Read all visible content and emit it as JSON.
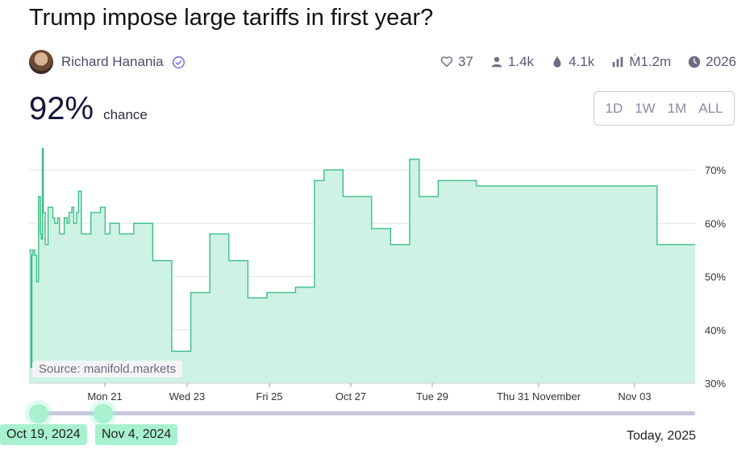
{
  "title": "Trump impose large tariffs in first year?",
  "creator": {
    "name": "Richard Hanania",
    "avatar_icon": "avatar-photo",
    "verified_icon": "verified-badge-icon"
  },
  "stats": {
    "likes": "37",
    "traders": "1.4k",
    "liquidity": "4.1k",
    "volume": "Ṁ1.2m",
    "close": "2026"
  },
  "probability": {
    "value": "92%",
    "label": "chance"
  },
  "range_buttons": [
    "1D",
    "1W",
    "1M",
    "ALL"
  ],
  "source": "Source: manifold.markets",
  "slider": {
    "start_label": "Oct 19, 2024",
    "end_label": "Nov 4, 2024",
    "right_label": "Today, 2025"
  },
  "colors": {
    "line": "#3cbf87",
    "fill": "#cef2e3",
    "accent": "#a7f0d0"
  },
  "chart_data": {
    "type": "area",
    "x_tick_labels": [
      "Mon 21",
      "Wed 23",
      "Fri 25",
      "Oct 27",
      "Tue 29",
      "Thu 31 November",
      "Nov 03"
    ],
    "y_tick_labels": [
      "30%",
      "40%",
      "50%",
      "60%",
      "70%"
    ],
    "ylim": [
      30,
      75
    ],
    "grid": true,
    "series": [
      {
        "x": [
          0,
          0.02,
          0.03,
          0.04,
          0.06,
          0.08,
          0.1,
          0.12,
          0.13,
          0.14,
          0.15,
          0.17,
          0.2,
          0.22,
          0.25,
          0.27,
          0.3,
          0.32,
          0.35,
          0.37,
          0.4,
          0.42,
          0.45,
          0.47,
          0.5,
          0.52,
          0.55,
          0.6,
          0.65,
          0.7,
          0.75,
          0.8,
          0.85,
          0.9,
          0.95,
          1.0,
          1.1,
          1.2,
          1.3,
          1.4,
          1.5,
          1.6,
          1.7,
          1.8,
          1.9,
          2.0,
          2.1,
          2.2,
          2.3,
          2.4,
          2.5,
          2.7,
          2.8,
          3.0,
          3.1,
          3.3,
          3.5,
          3.6,
          3.7,
          3.8,
          3.9,
          4.0,
          4.1,
          4.2,
          4.3,
          4.4,
          4.5,
          4.6,
          4.7,
          4.8,
          4.9,
          5.0,
          5.2,
          5.4,
          5.6,
          5.8,
          6.0,
          6.2,
          6.4,
          6.6,
          6.8,
          7.0
        ],
        "values": [
          55,
          33,
          54,
          55,
          54,
          49,
          65,
          58,
          57,
          74,
          62,
          56,
          63,
          63,
          61,
          60,
          61,
          58,
          58,
          61,
          60,
          62,
          63,
          60,
          62,
          66,
          58,
          58,
          62,
          62,
          63,
          58,
          60,
          60,
          58,
          58,
          60,
          60,
          53,
          53,
          36,
          36,
          47,
          47,
          58,
          58,
          53,
          53,
          46,
          46,
          47,
          47,
          48,
          68,
          70,
          65,
          65,
          59,
          59,
          56,
          56,
          72,
          65,
          65,
          68,
          68,
          68,
          68,
          67,
          67,
          67,
          67,
          67,
          67,
          67,
          67,
          67,
          67,
          67,
          56,
          56,
          56
        ],
        "xlim": [
          0,
          7
        ]
      }
    ]
  }
}
